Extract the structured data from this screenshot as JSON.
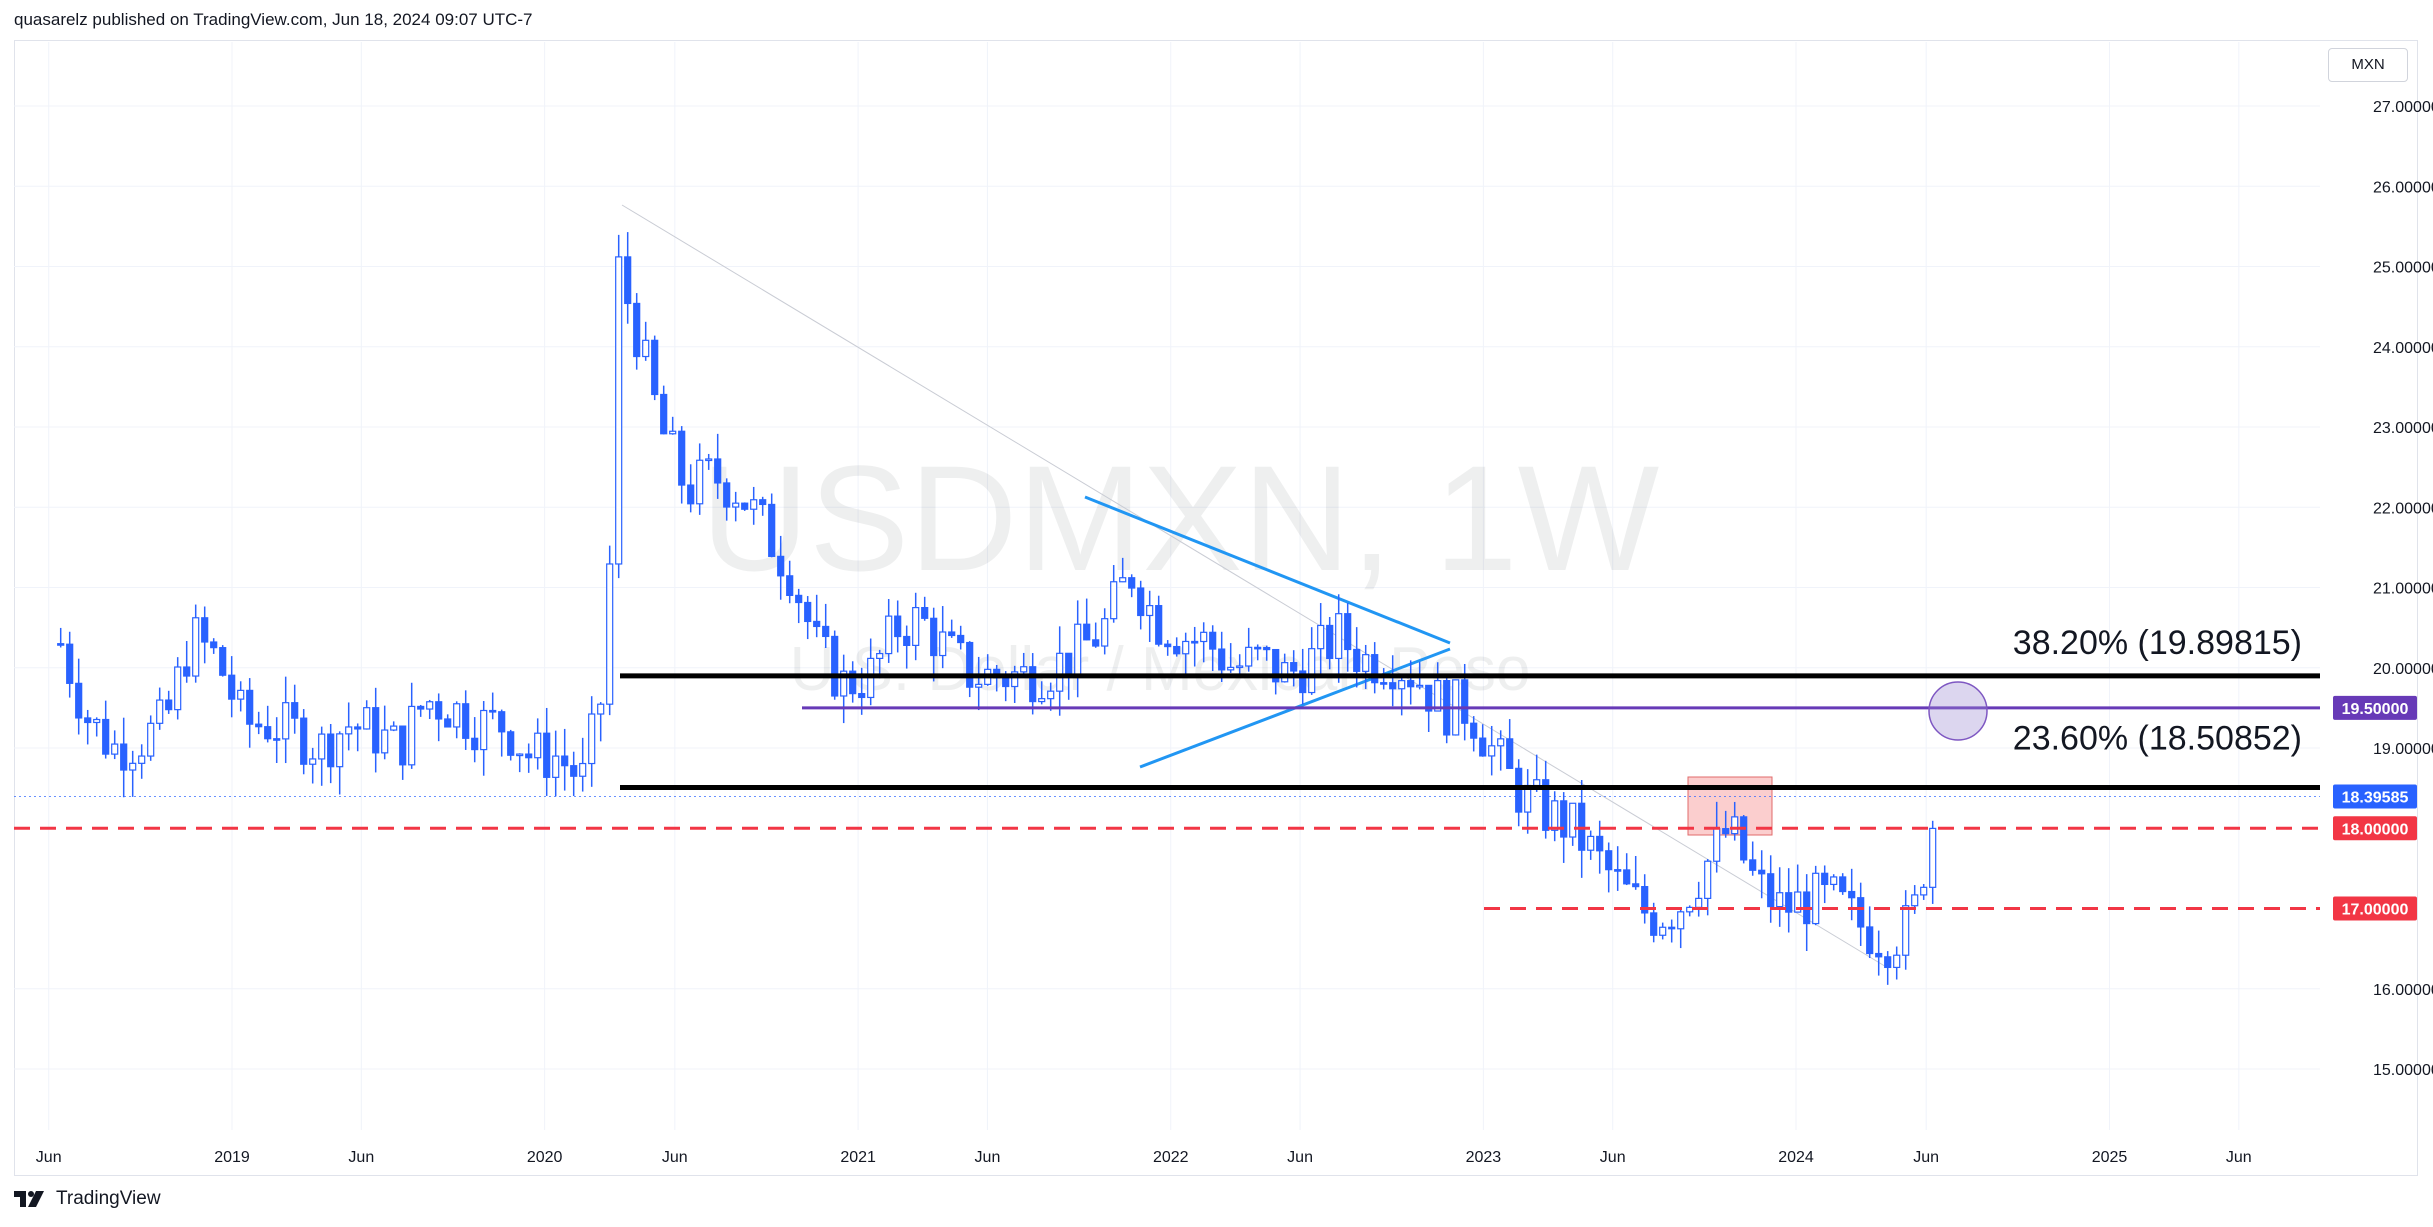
{
  "header": {
    "publisher_line": "quasarelz published on TradingView.com, Jun 18, 2024 09:07 UTC-7"
  },
  "footer": {
    "brand": "TradingView",
    "logo_icon": "tradingview-logo-icon"
  },
  "chart": {
    "currency": "MXN",
    "watermark_symbol": "USDMXN, 1W",
    "watermark_name": "U.S. Dollar / Mexican Peso"
  },
  "chart_data": {
    "type": "candlestick",
    "symbol": "USDMXN",
    "interval": "1W",
    "ylim": [
      14.5,
      27.7
    ],
    "y_ticks": [
      "27.00000",
      "26.00000",
      "25.00000",
      "24.00000",
      "23.00000",
      "22.00000",
      "21.00000",
      "20.00000",
      "19.00000",
      "16.00000",
      "15.00000"
    ],
    "x_ticks": [
      "Jun",
      "2019",
      "Jun",
      "2020",
      "Jun",
      "2021",
      "Jun",
      "2022",
      "Jun",
      "2023",
      "Jun",
      "2024",
      "Jun",
      "2025",
      "Jun"
    ],
    "series": [
      {
        "name": "USDMXN",
        "points": [
          [
            "2018-06",
            20.3
          ],
          [
            "2018-07",
            19.4
          ],
          [
            "2018-08",
            19.0
          ],
          [
            "2018-09",
            19.1
          ],
          [
            "2018-10",
            19.3
          ],
          [
            "2018-11",
            20.4
          ],
          [
            "2018-12",
            20.1
          ],
          [
            "2019-01",
            19.3
          ],
          [
            "2019-02",
            19.3
          ],
          [
            "2019-03",
            19.2
          ],
          [
            "2019-04",
            19.0
          ],
          [
            "2019-05",
            19.3
          ],
          [
            "2019-06",
            19.2
          ],
          [
            "2019-07",
            19.0
          ],
          [
            "2019-08",
            19.6
          ],
          [
            "2019-09",
            19.5
          ],
          [
            "2019-10",
            19.3
          ],
          [
            "2019-11",
            19.3
          ],
          [
            "2019-12",
            18.9
          ],
          [
            "2020-01",
            18.9
          ],
          [
            "2020-02",
            18.6
          ],
          [
            "2020-03",
            20.0
          ],
          [
            "2020-03-23",
            25.1
          ],
          [
            "2020-04",
            24.3
          ],
          [
            "2020-05",
            23.0
          ],
          [
            "2020-06",
            22.2
          ],
          [
            "2020-07",
            22.4
          ],
          [
            "2020-08",
            22.2
          ],
          [
            "2020-09",
            21.7
          ],
          [
            "2020-10",
            21.2
          ],
          [
            "2020-11",
            20.2
          ],
          [
            "2020-12",
            19.8
          ],
          [
            "2021-01",
            19.9
          ],
          [
            "2021-02",
            20.5
          ],
          [
            "2021-03",
            20.6
          ],
          [
            "2021-04",
            20.2
          ],
          [
            "2021-05",
            19.9
          ],
          [
            "2021-06",
            19.9
          ],
          [
            "2021-07",
            19.9
          ],
          [
            "2021-08",
            20.0
          ],
          [
            "2021-09",
            20.2
          ],
          [
            "2021-10",
            20.5
          ],
          [
            "2021-11",
            21.2
          ],
          [
            "2021-12",
            20.6
          ],
          [
            "2022-01",
            20.4
          ],
          [
            "2022-02",
            20.3
          ],
          [
            "2022-03",
            20.0
          ],
          [
            "2022-04",
            20.1
          ],
          [
            "2022-05",
            19.9
          ],
          [
            "2022-06",
            20.1
          ],
          [
            "2022-07",
            20.4
          ],
          [
            "2022-08",
            20.1
          ],
          [
            "2022-09",
            20.1
          ],
          [
            "2022-10",
            19.9
          ],
          [
            "2022-11",
            19.5
          ],
          [
            "2022-12",
            19.5
          ],
          [
            "2023-01",
            18.9
          ],
          [
            "2023-02",
            18.4
          ],
          [
            "2023-03",
            18.2
          ],
          [
            "2023-04",
            18.0
          ],
          [
            "2023-05",
            17.6
          ],
          [
            "2023-06",
            17.2
          ],
          [
            "2023-07",
            16.9
          ],
          [
            "2023-08",
            17.0
          ],
          [
            "2023-09",
            17.5
          ],
          [
            "2023-10",
            18.0
          ],
          [
            "2023-11",
            17.3
          ],
          [
            "2023-12",
            17.0
          ],
          [
            "2024-01",
            17.1
          ],
          [
            "2024-02",
            17.1
          ],
          [
            "2024-03",
            16.8
          ],
          [
            "2024-04",
            16.6
          ],
          [
            "2024-05",
            16.8
          ],
          [
            "2024-06",
            18.4
          ]
        ]
      }
    ],
    "fib_levels": [
      {
        "label": "38.20% (19.89815)",
        "value": 19.89815
      },
      {
        "label": "23.60% (18.50852)",
        "value": 18.50852
      }
    ],
    "horizontal_levels": [
      {
        "label": "19.50000",
        "value": 19.5,
        "color": "#673ab7",
        "style": "solid"
      },
      {
        "label": "18.00000",
        "value": 18.0,
        "color": "#f23645",
        "style": "dashed"
      },
      {
        "label": "17.00000",
        "value": 17.0,
        "color": "#f23645",
        "style": "dashed"
      }
    ],
    "last_price": {
      "label": "18.39585",
      "value": 18.39585,
      "color": "#2962ff"
    },
    "colors": {
      "candles": "#2962ff",
      "trendlines": "#2196f3",
      "fib": "#000000",
      "zone": "#f7a6a6"
    }
  }
}
